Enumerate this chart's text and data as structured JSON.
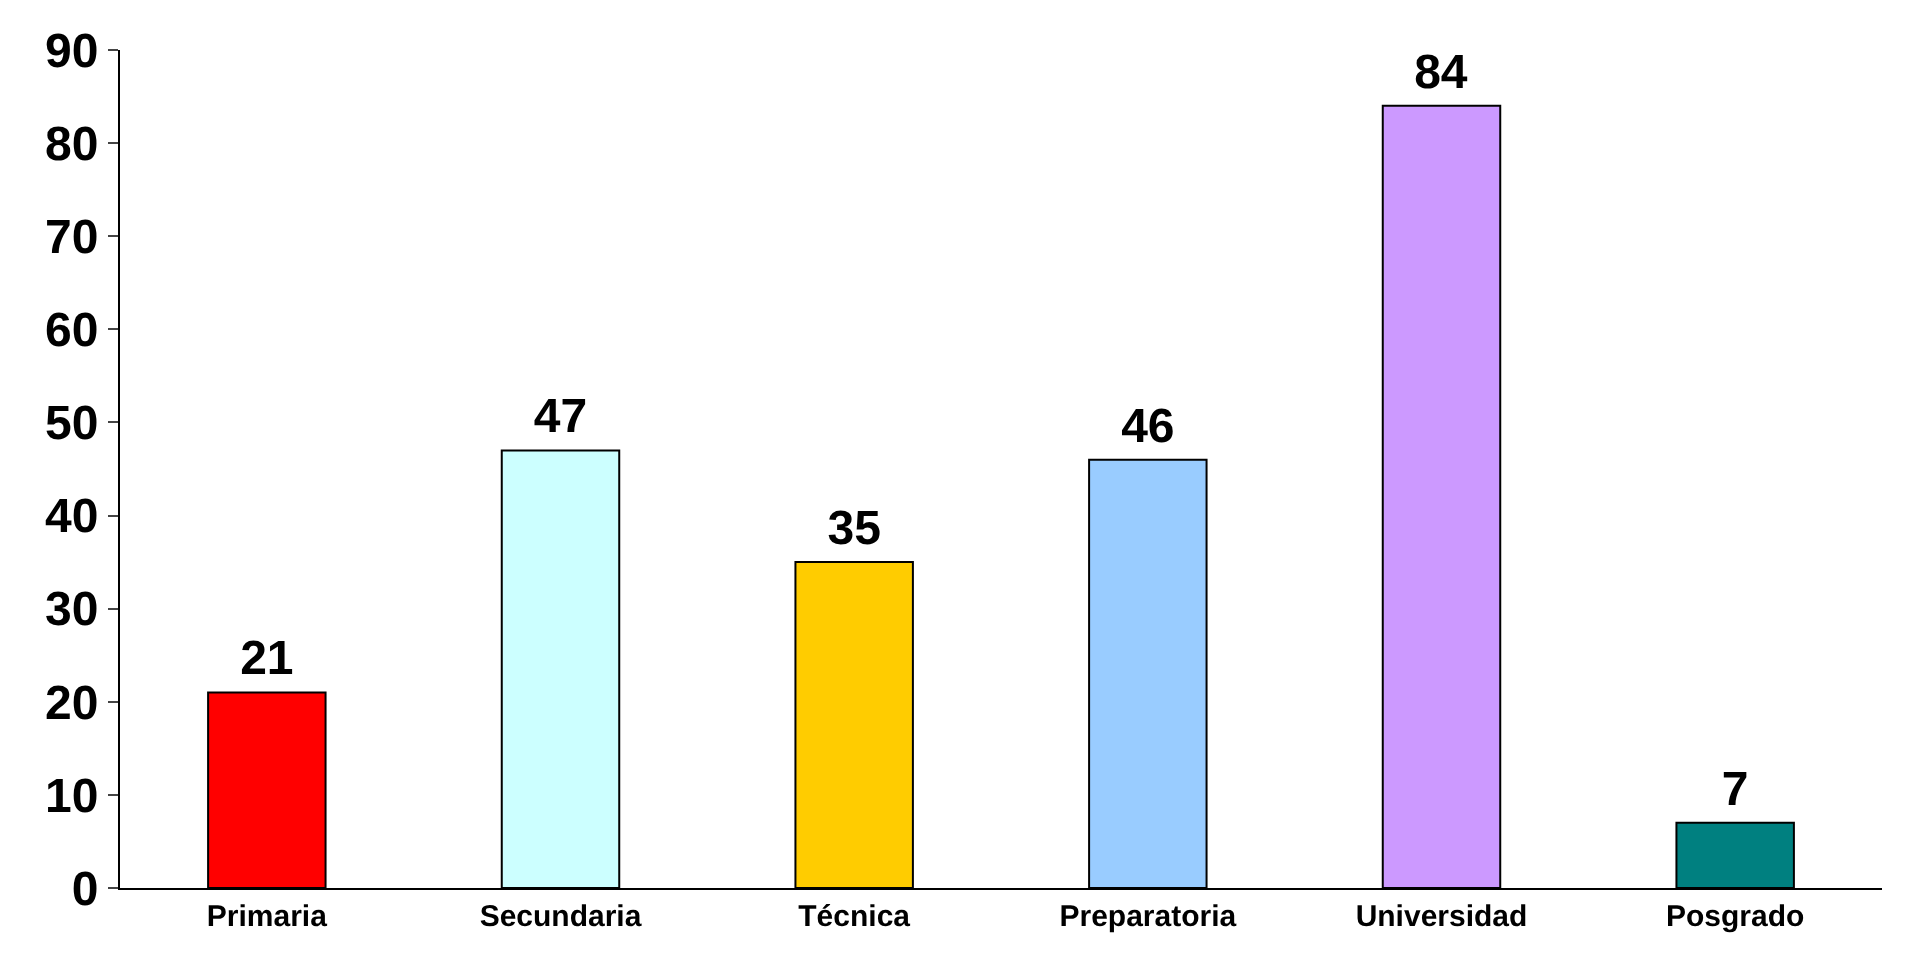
{
  "chart_data": {
    "type": "bar",
    "categories": [
      "Primaria",
      "Secundaria",
      "Técnica",
      "Preparatoria",
      "Universidad",
      "Posgrado"
    ],
    "values": [
      21,
      47,
      35,
      46,
      84,
      7
    ],
    "colors": [
      "#ff0000",
      "#ccffff",
      "#ffcc00",
      "#99ccff",
      "#cc99ff",
      "#008080"
    ],
    "ylim": [
      0,
      90
    ],
    "yticks": [
      0,
      10,
      20,
      30,
      40,
      50,
      60,
      70,
      80,
      90
    ],
    "data_labels": true
  }
}
